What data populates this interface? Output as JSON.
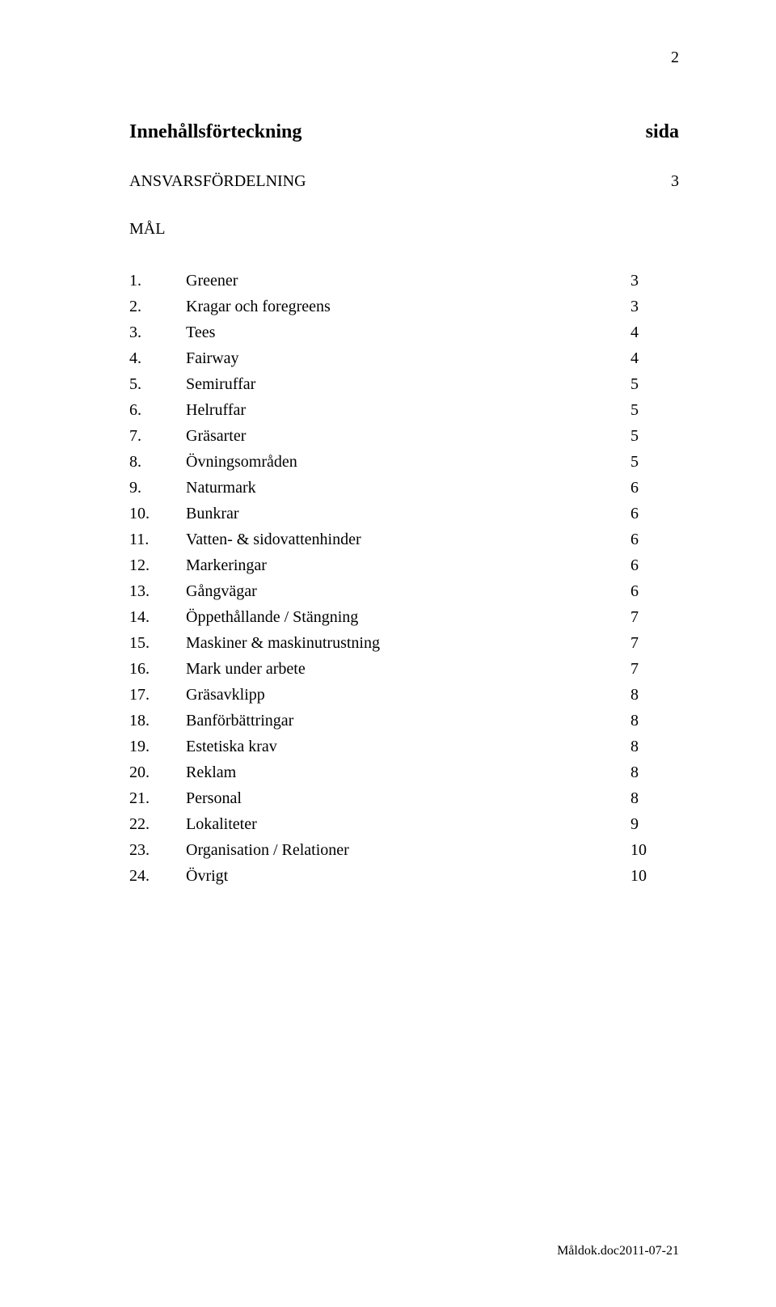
{
  "page_number_top": "2",
  "heading": {
    "left": "Innehållsförteckning",
    "right": "sida"
  },
  "section": {
    "title": "ANSVARSFÖRDELNING",
    "page": "3"
  },
  "subhead": "MÅL",
  "toc": [
    {
      "num": "1.",
      "title": "Greener",
      "page": "3"
    },
    {
      "num": "2.",
      "title": "Kragar och foregreens",
      "page": "3"
    },
    {
      "num": "3.",
      "title": "Tees",
      "page": "4"
    },
    {
      "num": "4.",
      "title": "Fairway",
      "page": "4"
    },
    {
      "num": "5.",
      "title": "Semiruffar",
      "page": "5"
    },
    {
      "num": "6.",
      "title": "Helruffar",
      "page": "5"
    },
    {
      "num": "7.",
      "title": "Gräsarter",
      "page": "5"
    },
    {
      "num": "8.",
      "title": "Övningsområden",
      "page": "5"
    },
    {
      "num": "9.",
      "title": "Naturmark",
      "page": "6"
    },
    {
      "num": "10.",
      "title": "Bunkrar",
      "page": "6"
    },
    {
      "num": "11.",
      "title": "Vatten- & sidovattenhinder",
      "page": "6"
    },
    {
      "num": "12.",
      "title": "Markeringar",
      "page": "6"
    },
    {
      "num": "13.",
      "title": "Gångvägar",
      "page": "6"
    },
    {
      "num": "14.",
      "title": "Öppethållande / Stängning",
      "page": "7"
    },
    {
      "num": "15.",
      "title": "Maskiner & maskinutrustning",
      "page": "7"
    },
    {
      "num": "16.",
      "title": "Mark under arbete",
      "page": "7"
    },
    {
      "num": "17.",
      "title": "Gräsavklipp",
      "page": "8"
    },
    {
      "num": "18.",
      "title": "Banförbättringar",
      "page": "8"
    },
    {
      "num": "19.",
      "title": "Estetiska krav",
      "page": "8"
    },
    {
      "num": "20.",
      "title": "Reklam",
      "page": "8"
    },
    {
      "num": "21.",
      "title": "Personal",
      "page": "8"
    },
    {
      "num": "22.",
      "title": "Lokaliteter",
      "page": "9"
    },
    {
      "num": "23.",
      "title": "Organisation / Relationer",
      "page": "10"
    },
    {
      "num": "24.",
      "title": "Övrigt",
      "page": "10"
    }
  ],
  "footer": "Måldok.doc2011-07-21"
}
